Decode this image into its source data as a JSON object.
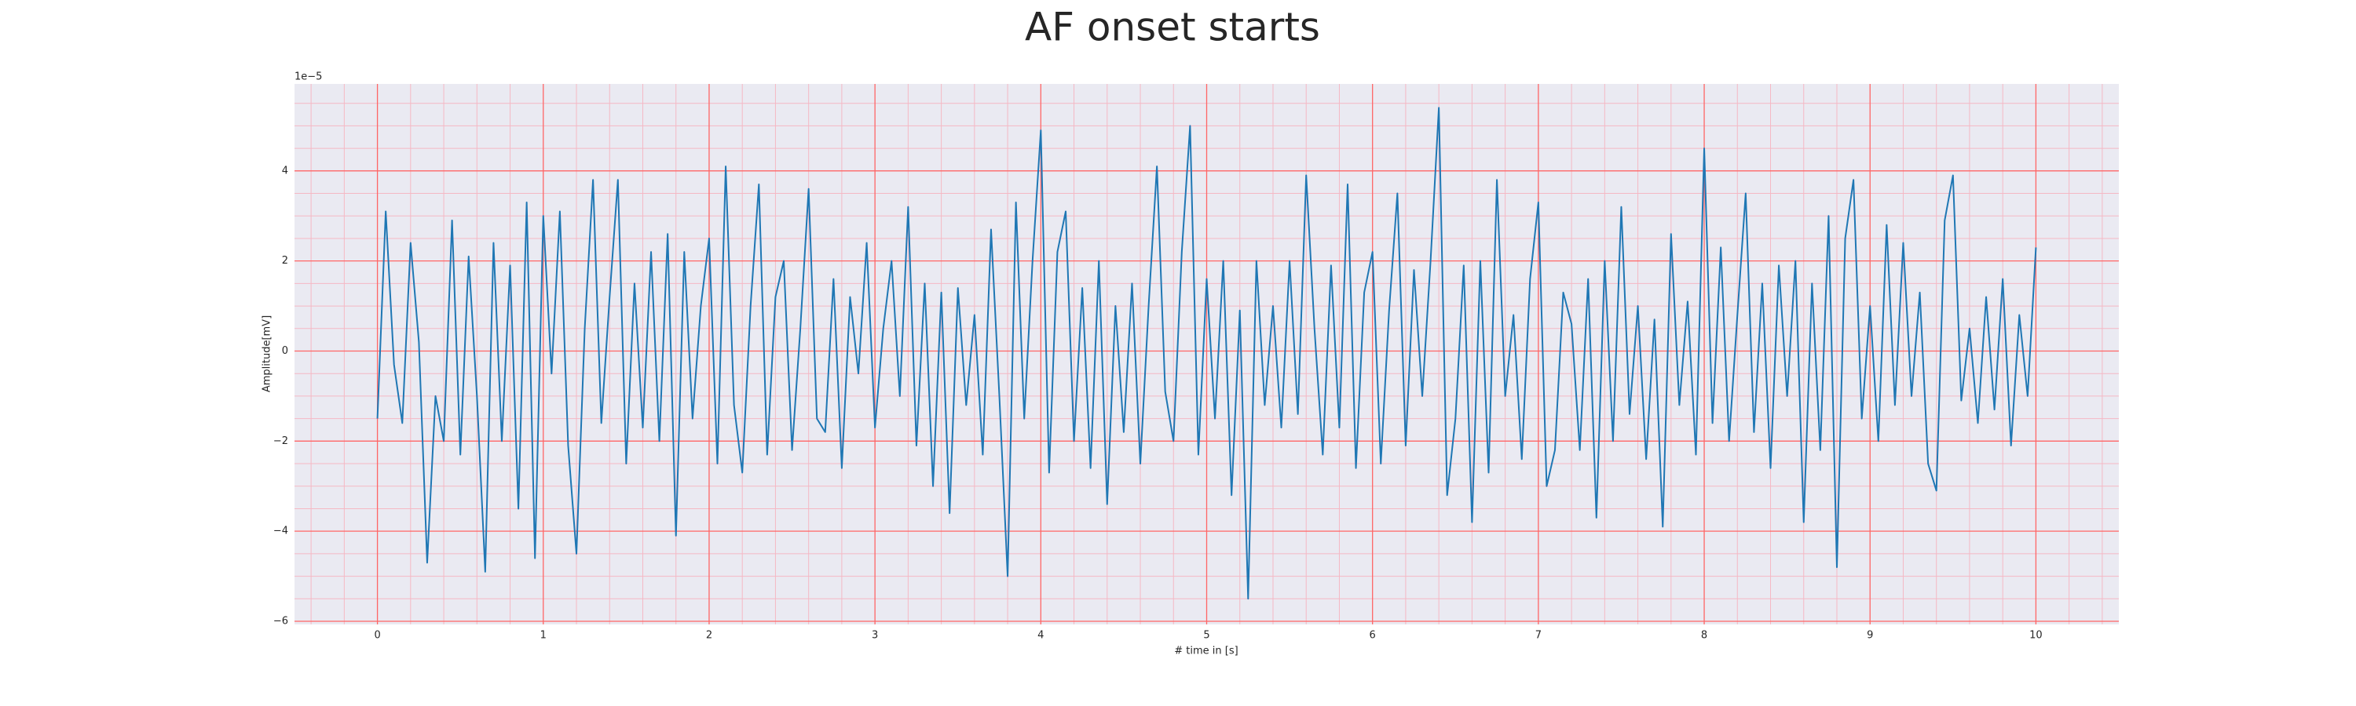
{
  "chart_data": {
    "type": "line",
    "title": "AF onset starts",
    "x_label": "# time in [s]",
    "y_label": "Amplitude[mV]",
    "y_offset_label": "1e−5",
    "x": [
      0,
      0.05,
      0.1,
      0.15,
      0.2,
      0.25,
      0.3,
      0.35,
      0.4,
      0.45,
      0.5,
      0.55,
      0.6,
      0.65,
      0.7,
      0.75,
      0.8,
      0.85,
      0.9,
      0.95,
      1,
      1.05,
      1.1,
      1.15,
      1.2,
      1.25,
      1.3,
      1.35,
      1.4,
      1.45,
      1.5,
      1.55,
      1.6,
      1.65,
      1.7,
      1.75,
      1.8,
      1.85,
      1.9,
      1.95,
      2,
      2.05,
      2.1,
      2.15,
      2.2,
      2.25,
      2.3,
      2.35,
      2.4,
      2.45,
      2.5,
      2.55,
      2.6,
      2.65,
      2.7,
      2.75,
      2.8,
      2.85,
      2.9,
      2.95,
      3,
      3.05,
      3.1,
      3.15,
      3.2,
      3.25,
      3.3,
      3.35,
      3.4,
      3.45,
      3.5,
      3.55,
      3.6,
      3.65,
      3.7,
      3.75,
      3.8,
      3.85,
      3.9,
      3.95,
      4,
      4.05,
      4.1,
      4.15,
      4.2,
      4.25,
      4.3,
      4.35,
      4.4,
      4.45,
      4.5,
      4.55,
      4.6,
      4.65,
      4.7,
      4.75,
      4.8,
      4.85,
      4.9,
      4.95,
      5,
      5.05,
      5.1,
      5.15,
      5.2,
      5.25,
      5.3,
      5.35,
      5.4,
      5.45,
      5.5,
      5.55,
      5.6,
      5.65,
      5.7,
      5.75,
      5.8,
      5.85,
      5.9,
      5.95,
      6,
      6.05,
      6.1,
      6.15,
      6.2,
      6.25,
      6.3,
      6.35,
      6.4,
      6.45,
      6.5,
      6.55,
      6.6,
      6.65,
      6.7,
      6.75,
      6.8,
      6.85,
      6.9,
      6.95,
      7,
      7.05,
      7.1,
      7.15,
      7.2,
      7.25,
      7.3,
      7.35,
      7.4,
      7.45,
      7.5,
      7.55,
      7.6,
      7.65,
      7.7,
      7.75,
      7.8,
      7.85,
      7.9,
      7.95,
      8,
      8.05,
      8.1,
      8.15,
      8.2,
      8.25,
      8.3,
      8.35,
      8.4,
      8.45,
      8.5,
      8.55,
      8.6,
      8.65,
      8.7,
      8.75,
      8.8,
      8.85,
      8.9,
      8.95,
      9,
      9.05,
      9.1,
      9.15,
      9.2,
      9.25,
      9.3,
      9.35,
      9.4,
      9.45,
      9.5,
      9.55,
      9.6,
      9.65,
      9.7,
      9.75,
      9.8,
      9.85,
      9.9,
      9.95,
      10
    ],
    "series": [
      {
        "color": "#1f77b4",
        "values": [
          -1.5,
          3.1,
          -0.3,
          -1.6,
          2.4,
          0.2,
          -4.7,
          -1.0,
          -2.0,
          2.9,
          -2.3,
          2.1,
          -1.0,
          -4.9,
          2.4,
          -2.0,
          1.9,
          -3.5,
          3.3,
          -4.6,
          3.0,
          -0.5,
          3.1,
          -2.1,
          -4.5,
          0.5,
          3.8,
          -1.6,
          1.2,
          3.8,
          -2.5,
          1.5,
          -1.7,
          2.2,
          -2.0,
          2.6,
          -4.1,
          2.2,
          -1.5,
          1.0,
          2.5,
          -2.5,
          4.1,
          -1.2,
          -2.7,
          1.0,
          3.7,
          -2.3,
          1.2,
          2.0,
          -2.2,
          0.5,
          3.6,
          -1.5,
          -1.8,
          1.6,
          -2.6,
          1.2,
          -0.5,
          2.4,
          -1.7,
          0.5,
          2.0,
          -1.0,
          3.2,
          -2.1,
          1.5,
          -3.0,
          1.3,
          -3.6,
          1.4,
          -1.2,
          0.8,
          -2.3,
          2.7,
          -1.0,
          -5.0,
          3.3,
          -1.5,
          2.0,
          4.9,
          -2.7,
          2.2,
          3.1,
          -2.0,
          1.4,
          -2.6,
          2.0,
          -3.4,
          1.0,
          -1.8,
          1.5,
          -2.5,
          1.0,
          4.1,
          -0.9,
          -2.0,
          2.2,
          5.0,
          -2.3,
          1.6,
          -1.5,
          2.0,
          -3.2,
          0.9,
          -5.5,
          2.0,
          -1.2,
          1.0,
          -1.7,
          2.0,
          -1.4,
          3.9,
          0.5,
          -2.3,
          1.9,
          -1.7,
          3.7,
          -2.6,
          1.3,
          2.2,
          -2.5,
          0.9,
          3.5,
          -2.1,
          1.8,
          -1.0,
          2.0,
          5.4,
          -3.2,
          -1.5,
          1.9,
          -3.8,
          2.0,
          -2.7,
          3.8,
          -1.0,
          0.8,
          -2.4,
          1.6,
          3.3,
          -3.0,
          -2.2,
          1.3,
          0.6,
          -2.2,
          1.6,
          -3.7,
          2.0,
          -2.0,
          3.2,
          -1.4,
          1.0,
          -2.4,
          0.7,
          -3.9,
          2.6,
          -1.2,
          1.1,
          -2.3,
          4.5,
          -1.6,
          2.3,
          -2.0,
          0.8,
          3.5,
          -1.8,
          1.5,
          -2.6,
          1.9,
          -1.0,
          2.0,
          -3.8,
          1.5,
          -2.2,
          3.0,
          -4.8,
          2.5,
          3.8,
          -1.5,
          1.0,
          -2.0,
          2.8,
          -1.2,
          2.4,
          -1.0,
          1.3,
          -2.5,
          -3.1,
          2.9,
          3.9,
          -1.1,
          0.5,
          -1.6,
          1.2,
          -1.3,
          1.6,
          -2.1,
          0.8,
          -1.0,
          2.3
        ]
      }
    ],
    "xlim": [
      -0.5,
      10.5
    ],
    "ylim": [
      -6.07,
      5.93
    ],
    "xticks": [
      0,
      1,
      2,
      3,
      4,
      5,
      6,
      7,
      8,
      9,
      10
    ],
    "yticks": [
      {
        "value": -6,
        "label": "−6"
      },
      {
        "value": -4,
        "label": "−4"
      },
      {
        "value": -2,
        "label": "−2"
      },
      0,
      2,
      4
    ],
    "xminorticks": [
      -0.4,
      -0.2,
      0.2,
      0.4,
      0.6,
      0.8,
      1.2,
      1.4,
      1.6,
      1.8,
      2.2,
      2.4,
      2.6,
      2.8,
      3.2,
      3.4,
      3.6,
      3.8,
      4.2,
      4.4,
      4.6,
      4.8,
      5.2,
      5.4,
      5.6,
      5.8,
      6.2,
      6.4,
      6.6,
      6.8,
      7.2,
      7.4,
      7.6,
      7.8,
      8.2,
      8.4,
      8.6,
      8.8,
      9.2,
      9.4,
      9.6,
      9.8,
      10.2,
      10.4
    ],
    "yminorticks": [
      -5.5,
      -5,
      -4.5,
      -3.5,
      -3,
      -2.5,
      -1.5,
      -1,
      -0.5,
      0.5,
      1,
      1.5,
      2.5,
      3,
      3.5,
      4.5,
      5,
      5.5
    ],
    "grid": true,
    "background": "#eaeaf2",
    "grid_color": "#ff6666",
    "minor_grid_color": "#f5b8c4"
  }
}
